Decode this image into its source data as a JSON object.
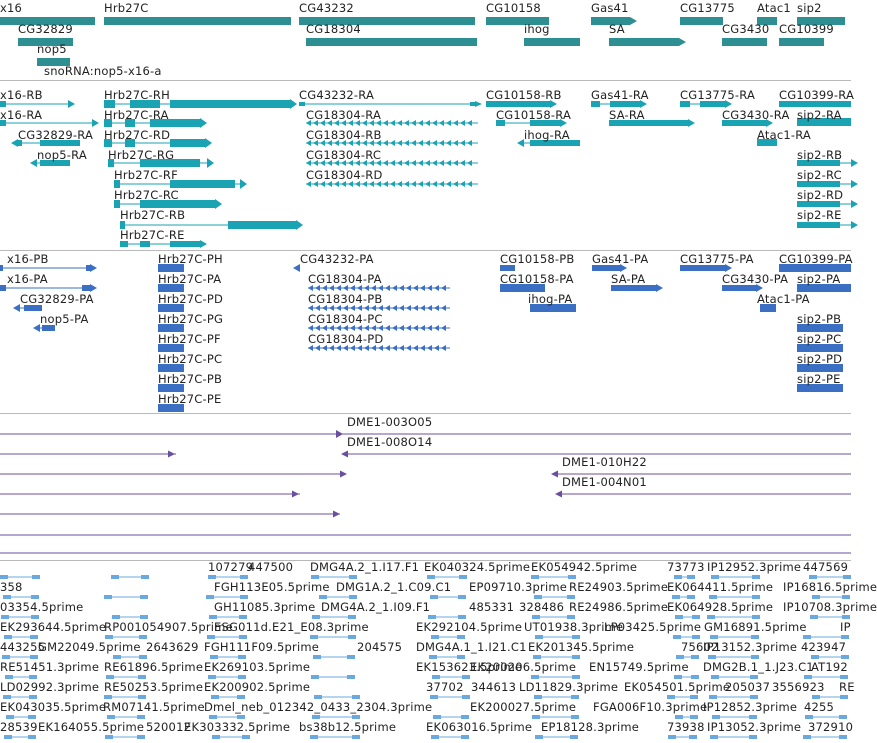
{
  "colors": {
    "gene": "#2e8f92",
    "transcript": "#1aa3b3",
    "protein": "#3a6fc4",
    "clone": "#6a4fa0",
    "est": "#6aa9df"
  },
  "gene_labels": [
    {
      "t": "x16"
    },
    {
      "t": "Hrb27C"
    },
    {
      "t": "CG43232"
    },
    {
      "t": "CG10158"
    },
    {
      "t": "Gas41"
    },
    {
      "t": "CG13775"
    },
    {
      "t": "Atac1"
    },
    {
      "t": "sip2"
    },
    {
      "t": "CG32829"
    },
    {
      "t": "CG18304"
    },
    {
      "t": "ihog"
    },
    {
      "t": "SA"
    },
    {
      "t": "CG3430"
    },
    {
      "t": "CG10399"
    },
    {
      "t": "nop5"
    },
    {
      "t": "snoRNA:nop5-x16-a"
    }
  ],
  "transcript_labels": [
    {
      "t": "x16-RB"
    },
    {
      "t": "Hrb27C-RH"
    },
    {
      "t": "CG43232-RA"
    },
    {
      "t": "CG10158-RB"
    },
    {
      "t": "Gas41-RA"
    },
    {
      "t": "CG13775-RA"
    },
    {
      "t": "CG10399-RA"
    },
    {
      "t": "x16-RA"
    },
    {
      "t": "Hrb27C-RA"
    },
    {
      "t": "CG18304-RA"
    },
    {
      "t": "CG10158-RA"
    },
    {
      "t": "SA-RA"
    },
    {
      "t": "CG3430-RA"
    },
    {
      "t": "sip2-RA"
    },
    {
      "t": "CG32829-RA"
    },
    {
      "t": "Hrb27C-RD"
    },
    {
      "t": "CG18304-RB"
    },
    {
      "t": "ihog-RA"
    },
    {
      "t": "Atac1-RA"
    },
    {
      "t": "nop5-RA"
    },
    {
      "t": "Hrb27C-RG"
    },
    {
      "t": "CG18304-RC"
    },
    {
      "t": "sip2-RB"
    },
    {
      "t": "Hrb27C-RF"
    },
    {
      "t": "CG18304-RD"
    },
    {
      "t": "sip2-RC"
    },
    {
      "t": "Hrb27C-RC"
    },
    {
      "t": "sip2-RD"
    },
    {
      "t": "Hrb27C-RB"
    },
    {
      "t": "sip2-RE"
    },
    {
      "t": "Hrb27C-RE"
    }
  ],
  "protein_labels": [
    {
      "t": "x16-PB"
    },
    {
      "t": "Hrb27C-PH"
    },
    {
      "t": "CG43232-PA"
    },
    {
      "t": "CG10158-PB"
    },
    {
      "t": "Gas41-PA"
    },
    {
      "t": "CG13775-PA"
    },
    {
      "t": "CG10399-PA"
    },
    {
      "t": "x16-PA"
    },
    {
      "t": "Hrb27C-PA"
    },
    {
      "t": "CG18304-PA"
    },
    {
      "t": "CG10158-PA"
    },
    {
      "t": "SA-PA"
    },
    {
      "t": "CG3430-PA"
    },
    {
      "t": "sip2-PA"
    },
    {
      "t": "CG32829-PA"
    },
    {
      "t": "Hrb27C-PD"
    },
    {
      "t": "CG18304-PB"
    },
    {
      "t": "ihog-PA"
    },
    {
      "t": "Atac1-PA"
    },
    {
      "t": "nop5-PA"
    },
    {
      "t": "Hrb27C-PG"
    },
    {
      "t": "CG18304-PC"
    },
    {
      "t": "sip2-PB"
    },
    {
      "t": "Hrb27C-PF"
    },
    {
      "t": "CG18304-PD"
    },
    {
      "t": "sip2-PC"
    },
    {
      "t": "Hrb27C-PC"
    },
    {
      "t": "sip2-PD"
    },
    {
      "t": "Hrb27C-PB"
    },
    {
      "t": "sip2-PE"
    },
    {
      "t": "Hrb27C-PE"
    }
  ],
  "clone_labels": [
    {
      "t": "DME1-003O05"
    },
    {
      "t": "DME1-008O14"
    },
    {
      "t": "DME1-010H22"
    },
    {
      "t": "DME1-004N01"
    }
  ],
  "est_labels": [
    {
      "t": "107279"
    },
    {
      "t": "447500"
    },
    {
      "t": "DMG4A.2_1.I17.F1"
    },
    {
      "t": "EK040324.5prime"
    },
    {
      "t": "EK054942.5prime"
    },
    {
      "t": "73773"
    },
    {
      "t": "IP12952.3prime"
    },
    {
      "t": "447569"
    },
    {
      "t": "358"
    },
    {
      "t": "FGH113E05.5prime"
    },
    {
      "t": "DMG1A.2_1.C09.C1"
    },
    {
      "t": "EP09710.3prime"
    },
    {
      "t": "RE24903.5prime"
    },
    {
      "t": "EK064411.5prime"
    },
    {
      "t": "IP16816.5prime"
    },
    {
      "t": "03354.5prime"
    },
    {
      "t": "GH11085.3prime"
    },
    {
      "t": "DMG4A.2_1.I09.F1"
    },
    {
      "t": "485331"
    },
    {
      "t": "328486"
    },
    {
      "t": "RE24986.5prime"
    },
    {
      "t": "EK064928.5prime"
    },
    {
      "t": "IP10708.3prime"
    },
    {
      "t": "EK293644.5prime"
    },
    {
      "t": "RP001054907.5prime"
    },
    {
      "t": "ESG011d.E21_E08.3prime"
    },
    {
      "t": "EK292104.5prime"
    },
    {
      "t": "UT01938.3prime"
    },
    {
      "t": "LP03425.5prime"
    },
    {
      "t": "GM16891.5prime"
    },
    {
      "t": "IP"
    },
    {
      "t": "443255"
    },
    {
      "t": "GM22049.5prime"
    },
    {
      "t": "2643629"
    },
    {
      "t": "FGH111F09.5prime"
    },
    {
      "t": "204575"
    },
    {
      "t": "DMG4A.1_1.I21.C1"
    },
    {
      "t": "EK201345.5prime"
    },
    {
      "t": "75602"
    },
    {
      "t": "IP13152.3prime"
    },
    {
      "t": "423947"
    },
    {
      "t": "RE51451.3prime"
    },
    {
      "t": "RE61896.5prime"
    },
    {
      "t": "EK269103.5prime"
    },
    {
      "t": "EK153623.5prime"
    },
    {
      "t": "EK200206.5prime"
    },
    {
      "t": "EN15749.5prime"
    },
    {
      "t": "DMG2B.1_1.J23.C1"
    },
    {
      "t": "AT192"
    },
    {
      "t": "LD02992.3prime"
    },
    {
      "t": "RE50253.5prime"
    },
    {
      "t": "EK200902.5prime"
    },
    {
      "t": "37702"
    },
    {
      "t": "344613"
    },
    {
      "t": "LD11829.3prime"
    },
    {
      "t": "EK054501.5prime"
    },
    {
      "t": "205037"
    },
    {
      "t": "3556923"
    },
    {
      "t": "RE"
    },
    {
      "t": "EK043035.5prime"
    },
    {
      "t": "RM07141.5prime"
    },
    {
      "t": "Dmel_neb_012342_0433_2304.3prime"
    },
    {
      "t": "EK200027.5prime"
    },
    {
      "t": "FGA006F10.3prime"
    },
    {
      "t": "IP12852.3prime"
    },
    {
      "t": "4255"
    },
    {
      "t": "28539"
    },
    {
      "t": "EK164055.5prime"
    },
    {
      "t": "520012"
    },
    {
      "t": "EK303332.5prime"
    },
    {
      "t": "bs38b12.5prime"
    },
    {
      "t": "EK063016.5prime"
    },
    {
      "t": "EP18128.3prime"
    },
    {
      "t": "73938"
    },
    {
      "t": "IP13052.3prime"
    },
    {
      "t": "372910"
    }
  ]
}
